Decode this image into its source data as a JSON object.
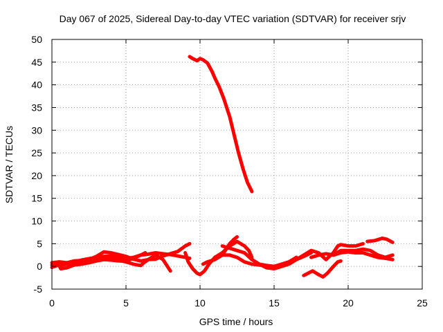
{
  "chart_data": {
    "type": "line",
    "title": "Day 067 of 2025, Sidereal Day-to-day VTEC variation (SDTVAR) for receiver srjv",
    "xlabel": "GPS time / hours",
    "ylabel": "SDTVAR / TECUs",
    "xlim": [
      0,
      25
    ],
    "ylim": [
      -5,
      50
    ],
    "xticks": [
      0,
      5,
      10,
      15,
      20,
      25
    ],
    "yticks": [
      -5,
      0,
      5,
      10,
      15,
      20,
      25,
      30,
      35,
      40,
      45,
      50
    ],
    "grid": true,
    "color": "#ff0000",
    "series": [
      {
        "name": "s1",
        "points": [
          [
            0,
            0.8
          ],
          [
            0.5,
            1.0
          ],
          [
            1,
            0.8
          ],
          [
            1.5,
            1.2
          ],
          [
            2,
            1.3
          ],
          [
            2.5,
            1.5
          ],
          [
            3,
            2.2
          ],
          [
            3.5,
            3.2
          ],
          [
            4,
            3.0
          ],
          [
            4.5,
            2.6
          ],
          [
            5,
            2.2
          ],
          [
            5.5,
            1.6
          ],
          [
            6,
            1.2
          ],
          [
            6.5,
            1.5
          ],
          [
            7,
            1.6
          ],
          [
            7.5,
            2.3
          ],
          [
            8,
            2.8
          ],
          [
            8.5,
            3.3
          ],
          [
            9,
            4.5
          ],
          [
            9.3,
            5.0
          ]
        ]
      },
      {
        "name": "s2",
        "points": [
          [
            0,
            0.3
          ],
          [
            0.5,
            0.2
          ],
          [
            1,
            0.5
          ],
          [
            1.5,
            0.7
          ],
          [
            2,
            0.9
          ],
          [
            2.5,
            1.2
          ],
          [
            3,
            1.5
          ],
          [
            3.5,
            1.8
          ],
          [
            4,
            1.6
          ],
          [
            4.5,
            1.3
          ],
          [
            5,
            1.0
          ],
          [
            5.5,
            0.5
          ],
          [
            6,
            0.2
          ],
          [
            6.2,
            0.8
          ],
          [
            6.5,
            1.5
          ],
          [
            7,
            2.5
          ],
          [
            7.5,
            1.5
          ],
          [
            7.8,
            0.0
          ],
          [
            8,
            -1.0
          ]
        ]
      },
      {
        "name": "s3",
        "points": [
          [
            0,
            -0.2
          ],
          [
            0.5,
            0.4
          ],
          [
            1,
            0.8
          ],
          [
            1.5,
            1.0
          ],
          [
            2,
            1.4
          ],
          [
            2.5,
            1.7
          ],
          [
            3,
            2.0
          ],
          [
            3.5,
            2.2
          ],
          [
            4,
            2.3
          ],
          [
            4.5,
            2.0
          ],
          [
            5,
            1.7
          ],
          [
            5.5,
            2.0
          ],
          [
            6,
            2.5
          ],
          [
            6.5,
            2.7
          ],
          [
            7,
            3.0
          ],
          [
            7.5,
            2.8
          ],
          [
            8,
            2.6
          ],
          [
            8.5,
            2.3
          ],
          [
            9,
            2.0
          ],
          [
            9.3,
            1.8
          ]
        ]
      },
      {
        "name": "s4",
        "points": [
          [
            0.4,
            0.8
          ],
          [
            0.6,
            -0.5
          ],
          [
            1,
            -0.3
          ],
          [
            1.5,
            0.3
          ],
          [
            2,
            0.5
          ],
          [
            2.5,
            0.8
          ],
          [
            3,
            1.2
          ],
          [
            3.5,
            1.5
          ],
          [
            4,
            1.4
          ],
          [
            4.5,
            1.2
          ],
          [
            5,
            1.2
          ],
          [
            5.5,
            1.8
          ],
          [
            6,
            2.5
          ],
          [
            6.3,
            3.0
          ]
        ]
      },
      {
        "name": "s5",
        "points": [
          [
            9.3,
            46.2
          ],
          [
            9.5,
            45.8
          ],
          [
            9.8,
            45.3
          ],
          [
            10,
            45.8
          ],
          [
            10.2,
            45.5
          ],
          [
            10.5,
            44.8
          ],
          [
            10.8,
            43.0
          ],
          [
            11,
            41.5
          ],
          [
            11.3,
            39.5
          ],
          [
            11.6,
            37.0
          ],
          [
            12,
            33.0
          ],
          [
            12.3,
            29.0
          ],
          [
            12.6,
            25.0
          ],
          [
            12.9,
            21.5
          ],
          [
            13.2,
            18.5
          ],
          [
            13.5,
            16.5
          ]
        ]
      },
      {
        "name": "s6",
        "points": [
          [
            9.0,
            3.0
          ],
          [
            9.2,
            1.0
          ],
          [
            9.5,
            -0.5
          ],
          [
            9.8,
            -1.5
          ],
          [
            10.0,
            -1.8
          ],
          [
            10.3,
            -1.0
          ],
          [
            10.6,
            0.5
          ],
          [
            11,
            2.0
          ],
          [
            11.5,
            3.0
          ],
          [
            12,
            4.5
          ],
          [
            12.5,
            5.5
          ],
          [
            13,
            4.5
          ],
          [
            13.3,
            3.5
          ],
          [
            13.5,
            2.0
          ]
        ]
      },
      {
        "name": "s7",
        "points": [
          [
            10.2,
            0.5
          ],
          [
            10.5,
            1.0
          ],
          [
            11,
            1.5
          ],
          [
            11.5,
            2.5
          ],
          [
            11.8,
            4.0
          ],
          [
            12,
            5.0
          ],
          [
            12.3,
            6.0
          ],
          [
            12.5,
            6.5
          ]
        ]
      },
      {
        "name": "s8",
        "points": [
          [
            11,
            2.0
          ],
          [
            11.5,
            2.5
          ],
          [
            12,
            2.5
          ],
          [
            12.5,
            2.0
          ],
          [
            13,
            1.0
          ],
          [
            13.5,
            0.5
          ],
          [
            14,
            0.3
          ],
          [
            14.5,
            0.2
          ],
          [
            15,
            0.0
          ],
          [
            15.5,
            0.5
          ],
          [
            16,
            1.0
          ],
          [
            16.5,
            2.0
          ]
        ]
      },
      {
        "name": "s9",
        "points": [
          [
            11.5,
            4.5
          ],
          [
            12,
            4.0
          ],
          [
            12.5,
            3.5
          ],
          [
            13,
            3.0
          ],
          [
            13.5,
            1.5
          ],
          [
            14,
            0.5
          ],
          [
            14.5,
            -0.3
          ],
          [
            15,
            -0.5
          ],
          [
            15.5,
            0.0
          ],
          [
            16,
            0.5
          ],
          [
            16.5,
            1.5
          ],
          [
            17,
            2.2
          ],
          [
            17.5,
            3.0
          ]
        ]
      },
      {
        "name": "s10",
        "points": [
          [
            14,
            0.5
          ],
          [
            14.5,
            0.2
          ],
          [
            15,
            0.0
          ],
          [
            15.5,
            0.3
          ],
          [
            16,
            1.0
          ],
          [
            16.5,
            1.5
          ],
          [
            17,
            2.5
          ],
          [
            17.5,
            3.5
          ],
          [
            18,
            3.0
          ],
          [
            18.5,
            1.5
          ],
          [
            19,
            3.0
          ],
          [
            19.3,
            4.5
          ],
          [
            19.5,
            4.8
          ],
          [
            20,
            4.5
          ],
          [
            20.5,
            4.5
          ],
          [
            21,
            5.0
          ]
        ]
      },
      {
        "name": "s11",
        "points": [
          [
            17,
            -2.0
          ],
          [
            17.3,
            -1.5
          ],
          [
            17.6,
            -1.0
          ],
          [
            18,
            -1.8
          ],
          [
            18.3,
            -2.3
          ],
          [
            18.6,
            -1.5
          ],
          [
            19,
            0.0
          ],
          [
            19.3,
            1.0
          ],
          [
            19.5,
            1.2
          ]
        ]
      },
      {
        "name": "s12",
        "points": [
          [
            17.5,
            2.0
          ],
          [
            18,
            2.5
          ],
          [
            18.5,
            2.8
          ],
          [
            19,
            2.5
          ],
          [
            19.5,
            3.5
          ],
          [
            20,
            3.5
          ],
          [
            20.5,
            3.5
          ],
          [
            21,
            3.8
          ],
          [
            21.5,
            3.5
          ],
          [
            22,
            2.5
          ],
          [
            22.5,
            2.0
          ],
          [
            23,
            2.5
          ]
        ]
      },
      {
        "name": "s13",
        "points": [
          [
            19,
            2.5
          ],
          [
            19.5,
            3.0
          ],
          [
            20,
            3.2
          ],
          [
            20.5,
            3.0
          ],
          [
            21,
            3.0
          ],
          [
            21.5,
            2.5
          ],
          [
            22,
            2.0
          ],
          [
            22.5,
            1.8
          ],
          [
            23,
            1.5
          ]
        ]
      },
      {
        "name": "s14",
        "points": [
          [
            21.3,
            5.5
          ],
          [
            21.8,
            5.7
          ],
          [
            22.3,
            6.2
          ],
          [
            22.6,
            6.0
          ],
          [
            23,
            5.3
          ]
        ]
      }
    ]
  }
}
